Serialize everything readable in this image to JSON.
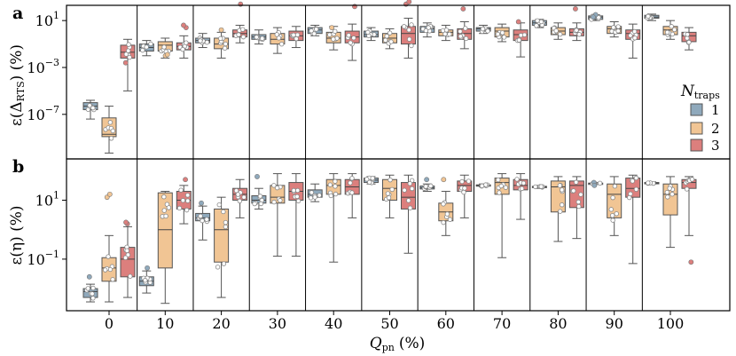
{
  "chart_data": {
    "type": "box",
    "figure": "Grouped box plots with strip points of relative errors vs pn-junction quality factor",
    "x": {
      "label_main": "Q",
      "label_sub": "pn",
      "label_unit": "(%)",
      "categories": [
        "0",
        "10",
        "20",
        "30",
        "40",
        "50",
        "60",
        "70",
        "80",
        "90",
        "100"
      ]
    },
    "legend": {
      "title_main": "N",
      "title_sub": "traps",
      "placement": "right, inside top panel",
      "entries": [
        {
          "label": "1",
          "color": "#8fa9bc"
        },
        {
          "label": "2",
          "color": "#f1c594"
        },
        {
          "label": "3",
          "color": "#dc7f7d"
        }
      ]
    },
    "panels": [
      {
        "label": "a",
        "ylabel": "ε(Δ_RTS) (%)",
        "ylabel_main": "ε(Δ",
        "ylabel_sub": "RTS",
        "ylabel_tail": ") (%)",
        "yscale": "log",
        "ylim_log10": [
          -10.8,
          2.3
        ],
        "yticks": [
          {
            "log10": 1,
            "base": "10",
            "exp": "1"
          },
          {
            "log10": -3,
            "base": "10",
            "exp": "−3"
          },
          {
            "log10": -7,
            "base": "10",
            "exp": "−7"
          }
        ],
        "series": [
          {
            "name": "1",
            "boxes_log10": [
              {
                "cat": "0",
                "wlo": -7.4,
                "q1": -6.6,
                "med": -6.3,
                "q3": -6.0,
                "whi": -5.8,
                "outliers": []
              },
              {
                "cat": "10",
                "wlo": -2.0,
                "q1": -1.6,
                "med": -1.3,
                "q3": -1.0,
                "whi": -0.7,
                "outliers": []
              },
              {
                "cat": "20",
                "wlo": -1.3,
                "q1": -0.9,
                "med": -0.7,
                "q3": -0.5,
                "whi": -0.1,
                "outliers": []
              },
              {
                "cat": "30",
                "wlo": -1.0,
                "q1": -0.6,
                "med": -0.4,
                "q3": -0.2,
                "whi": 0.2,
                "outliers": []
              },
              {
                "cat": "40",
                "wlo": -0.3,
                "q1": -0.1,
                "med": 0.2,
                "q3": 0.4,
                "whi": 0.6,
                "outliers": []
              },
              {
                "cat": "50",
                "wlo": -0.7,
                "q1": -0.4,
                "med": -0.2,
                "q3": 0.1,
                "whi": 0.4,
                "outliers": []
              },
              {
                "cat": "60",
                "wlo": -0.4,
                "q1": 0.0,
                "med": 0.3,
                "q3": 0.5,
                "whi": 0.8,
                "outliers": []
              },
              {
                "cat": "70",
                "wlo": -0.1,
                "q1": 0.1,
                "med": 0.3,
                "q3": 0.4,
                "whi": 0.6,
                "outliers": []
              },
              {
                "cat": "80",
                "wlo": 0.4,
                "q1": 0.6,
                "med": 0.8,
                "q3": 1.0,
                "whi": 1.1,
                "outliers": []
              },
              {
                "cat": "90",
                "wlo": 1.0,
                "q1": 1.1,
                "med": 1.3,
                "q3": 1.4,
                "whi": 1.5,
                "outliers": [
                  1.5,
                  1.3
                ]
              },
              {
                "cat": "100",
                "wlo": 1.0,
                "q1": 1.2,
                "med": 1.3,
                "q3": 1.45,
                "whi": 1.55,
                "outliers": []
              }
            ]
          },
          {
            "name": "2",
            "boxes_log10": [
              {
                "cat": "0",
                "wlo": -10.3,
                "q1": -8.9,
                "med": -8.7,
                "q3": -7.3,
                "whi": -6.3,
                "outliers": []
              },
              {
                "cat": "10",
                "wlo": -2.2,
                "q1": -1.6,
                "med": -1.1,
                "q3": -0.8,
                "whi": -0.5,
                "outliers": [
                  -2.0,
                  -1.9
                ]
              },
              {
                "cat": "20",
                "wlo": -2.2,
                "q1": -1.4,
                "med": -1.0,
                "q3": -0.5,
                "whi": 0.0,
                "outliers": [
                  0.2
                ]
              },
              {
                "cat": "30",
                "wlo": -1.8,
                "q1": -1.0,
                "med": -0.6,
                "q3": -0.1,
                "whi": 0.4,
                "outliers": []
              },
              {
                "cat": "40",
                "wlo": -1.5,
                "q1": -0.9,
                "med": -0.5,
                "q3": 0.0,
                "whi": 0.5,
                "outliers": [
                  0.4
                ]
              },
              {
                "cat": "50",
                "wlo": -1.4,
                "q1": -0.9,
                "med": -0.5,
                "q3": -0.1,
                "whi": 0.3,
                "outliers": []
              },
              {
                "cat": "60",
                "wlo": -0.7,
                "q1": -0.3,
                "med": 0.0,
                "q3": 0.2,
                "whi": 0.6,
                "outliers": []
              },
              {
                "cat": "70",
                "wlo": -0.8,
                "q1": -0.4,
                "med": 0.1,
                "q3": 0.4,
                "whi": 0.7,
                "outliers": []
              },
              {
                "cat": "80",
                "wlo": -0.6,
                "q1": -0.2,
                "med": 0.1,
                "q3": 0.4,
                "whi": 0.8,
                "outliers": []
              },
              {
                "cat": "90",
                "wlo": -0.4,
                "q1": -0.1,
                "med": 0.3,
                "q3": 0.5,
                "whi": 0.9,
                "outliers": []
              },
              {
                "cat": "100",
                "wlo": -0.6,
                "q1": -0.2,
                "med": 0.2,
                "q3": 0.5,
                "whi": 1.0,
                "outliers": []
              }
            ]
          },
          {
            "name": "3",
            "boxes_log10": [
              {
                "cat": "0",
                "wlo": -5.0,
                "q1": -2.2,
                "med": -1.7,
                "q3": -1.1,
                "whi": -0.6,
                "outliers": [
                  -2.6
                ]
              },
              {
                "cat": "10",
                "wlo": -2.2,
                "q1": -1.5,
                "med": -1.2,
                "q3": -0.9,
                "whi": -0.3,
                "outliers": [
                  0.4,
                  0.6
                ]
              },
              {
                "cat": "20",
                "wlo": -0.9,
                "q1": -0.4,
                "med": -0.1,
                "q3": 0.2,
                "whi": 0.6,
                "outliers": [
                  2.4
                ]
              },
              {
                "cat": "30",
                "wlo": -1.3,
                "q1": -0.7,
                "med": -0.3,
                "q3": 0.1,
                "whi": 0.5,
                "outliers": []
              },
              {
                "cat": "40",
                "wlo": -2.4,
                "q1": -0.9,
                "med": -0.4,
                "q3": 0.1,
                "whi": 0.7,
                "outliers": [
                  2.2
                ]
              },
              {
                "cat": "50",
                "wlo": -2.2,
                "q1": -1.0,
                "med": -0.1,
                "q3": 0.5,
                "whi": 1.2,
                "outliers": [
                  2.4,
                  2.6
                ]
              },
              {
                "cat": "60",
                "wlo": -1.4,
                "q1": -0.6,
                "med": -0.1,
                "q3": 0.3,
                "whi": 0.9,
                "outliers": [
                  2.0
                ]
              },
              {
                "cat": "70",
                "wlo": -2.1,
                "q1": -0.7,
                "med": -0.2,
                "q3": 0.2,
                "whi": 0.8,
                "outliers": [
                  0.9
                ]
              },
              {
                "cat": "80",
                "wlo": -0.7,
                "q1": -0.3,
                "med": 0.0,
                "q3": 0.3,
                "whi": 0.8,
                "outliers": [
                  2.0
                ]
              },
              {
                "cat": "90",
                "wlo": -2.2,
                "q1": -0.6,
                "med": -0.1,
                "q3": 0.2,
                "whi": 0.7,
                "outliers": []
              },
              {
                "cat": "100",
                "wlo": -1.5,
                "q1": -0.8,
                "med": -0.3,
                "q3": 0.0,
                "whi": 0.4,
                "outliers": []
              }
            ]
          }
        ]
      },
      {
        "label": "b",
        "ylabel": "ε(η) (%)",
        "ylabel_main": "ε(η) (%)",
        "yscale": "log",
        "ylim_log10": [
          -2.75,
          2.4
        ],
        "yticks": [
          {
            "log10": 1,
            "base": "10",
            "exp": "1"
          },
          {
            "log10": -1,
            "base": "10",
            "exp": "−1"
          }
        ],
        "series": [
          {
            "name": "1",
            "boxes_log10": [
              {
                "cat": "0",
                "wlo": -2.45,
                "q1": -2.3,
                "med": -2.1,
                "q3": -2.0,
                "whi": -1.85,
                "outliers": [
                  -1.6
                ]
              },
              {
                "cat": "10",
                "wlo": -2.15,
                "q1": -1.9,
                "med": -1.75,
                "q3": -1.6,
                "whi": -1.4,
                "outliers": [
                  -1.3
                ]
              },
              {
                "cat": "20",
                "wlo": -0.35,
                "q1": 0.3,
                "med": 0.4,
                "q3": 0.55,
                "whi": 0.8,
                "outliers": [
                  0.9
                ]
              },
              {
                "cat": "30",
                "wlo": 0.7,
                "q1": 0.9,
                "med": 1.0,
                "q3": 1.15,
                "whi": 1.4,
                "outliers": [
                  1.8
                ]
              },
              {
                "cat": "40",
                "wlo": 0.95,
                "q1": 1.1,
                "med": 1.2,
                "q3": 1.35,
                "whi": 1.55,
                "outliers": []
              },
              {
                "cat": "50",
                "wlo": 1.55,
                "q1": 1.6,
                "med": 1.68,
                "q3": 1.75,
                "whi": 1.8,
                "outliers": []
              },
              {
                "cat": "60",
                "wlo": 1.3,
                "q1": 1.38,
                "med": 1.42,
                "q3": 1.48,
                "whi": 1.55,
                "outliers": [
                  1.7
                ]
              },
              {
                "cat": "70",
                "wlo": 1.45,
                "q1": 1.48,
                "med": 1.5,
                "q3": 1.52,
                "whi": 1.55,
                "outliers": []
              },
              {
                "cat": "80",
                "wlo": 1.4,
                "q1": 1.43,
                "med": 1.45,
                "q3": 1.47,
                "whi": 1.5,
                "outliers": []
              },
              {
                "cat": "90",
                "wlo": 1.55,
                "q1": 1.56,
                "med": 1.57,
                "q3": 1.58,
                "whi": 1.6,
                "outliers": [
                  1.6,
                  1.5
                ]
              },
              {
                "cat": "100",
                "wlo": 1.55,
                "q1": 1.57,
                "med": 1.58,
                "q3": 1.6,
                "whi": 1.62,
                "outliers": []
              }
            ]
          },
          {
            "name": "2",
            "boxes_log10": [
              {
                "cat": "0",
                "wlo": -2.45,
                "q1": -1.75,
                "med": -1.3,
                "q3": -0.95,
                "whi": -0.2,
                "outliers": [
                  1.1,
                  1.2
                ]
              },
              {
                "cat": "10",
                "wlo": -2.5,
                "q1": -1.3,
                "med": 0.0,
                "q3": 1.25,
                "whi": 1.3,
                "outliers": []
              },
              {
                "cat": "20",
                "wlo": -2.3,
                "q1": -1.1,
                "med": 0.0,
                "q3": 0.7,
                "whi": 1.1,
                "outliers": []
              },
              {
                "cat": "30",
                "wlo": -0.9,
                "q1": 0.9,
                "med": 1.1,
                "q3": 1.5,
                "whi": 1.9,
                "outliers": []
              },
              {
                "cat": "40",
                "wlo": -1.1,
                "q1": 1.2,
                "med": 1.5,
                "q3": 1.7,
                "whi": 1.9,
                "outliers": []
              },
              {
                "cat": "50",
                "wlo": 0.4,
                "q1": 1.0,
                "med": 1.4,
                "q3": 1.7,
                "whi": 1.85,
                "outliers": []
              },
              {
                "cat": "60",
                "wlo": -0.2,
                "q1": 0.3,
                "med": 0.6,
                "q3": 0.9,
                "whi": 1.3,
                "outliers": [
                  1.7
                ]
              },
              {
                "cat": "70",
                "wlo": -0.95,
                "q1": 1.2,
                "med": 1.6,
                "q3": 1.75,
                "whi": 1.9,
                "outliers": []
              },
              {
                "cat": "80",
                "wlo": -0.4,
                "q1": 0.6,
                "med": 1.45,
                "q3": 1.65,
                "whi": 1.8,
                "outliers": []
              },
              {
                "cat": "90",
                "wlo": -0.2,
                "q1": 0.4,
                "med": 1.2,
                "q3": 1.55,
                "whi": 1.8,
                "outliers": []
              },
              {
                "cat": "100",
                "wlo": -0.6,
                "q1": 0.5,
                "med": 1.2,
                "q3": 1.55,
                "whi": 1.8,
                "outliers": []
              }
            ]
          },
          {
            "name": "3",
            "boxes_log10": [
              {
                "cat": "0",
                "wlo": -2.3,
                "q1": -1.6,
                "med": -1.0,
                "q3": -0.6,
                "whi": 0.1,
                "outliers": [
                  0.2,
                  0.25
                ]
              },
              {
                "cat": "10",
                "wlo": 0.2,
                "q1": 0.7,
                "med": 1.0,
                "q3": 1.3,
                "whi": 1.5,
                "outliers": [
                  1.7
                ]
              },
              {
                "cat": "20",
                "wlo": 0.4,
                "q1": 1.0,
                "med": 1.2,
                "q3": 1.4,
                "whi": 1.7,
                "outliers": []
              },
              {
                "cat": "30",
                "wlo": -0.9,
                "q1": 1.0,
                "med": 1.3,
                "q3": 1.6,
                "whi": 1.9,
                "outliers": []
              },
              {
                "cat": "40",
                "wlo": 0.4,
                "q1": 1.2,
                "med": 1.45,
                "q3": 1.7,
                "whi": 1.9,
                "outliers": []
              },
              {
                "cat": "50",
                "wlo": -0.8,
                "q1": 0.7,
                "med": 1.1,
                "q3": 1.6,
                "whi": 1.85,
                "outliers": []
              },
              {
                "cat": "60",
                "wlo": 0.4,
                "q1": 1.3,
                "med": 1.5,
                "q3": 1.65,
                "whi": 1.85,
                "outliers": []
              },
              {
                "cat": "70",
                "wlo": 0.35,
                "q1": 1.35,
                "med": 1.5,
                "q3": 1.7,
                "whi": 1.9,
                "outliers": []
              },
              {
                "cat": "80",
                "wlo": -0.3,
                "q1": 0.75,
                "med": 1.5,
                "q3": 1.65,
                "whi": 1.8,
                "outliers": []
              },
              {
                "cat": "90",
                "wlo": -1.15,
                "q1": 1.1,
                "med": 1.4,
                "q3": 1.75,
                "whi": 1.85,
                "outliers": []
              },
              {
                "cat": "100",
                "wlo": -0.2,
                "q1": 1.4,
                "med": 1.6,
                "q3": 1.7,
                "whi": 1.8,
                "outliers": [
                  -1.1
                ]
              }
            ]
          }
        ]
      }
    ]
  }
}
